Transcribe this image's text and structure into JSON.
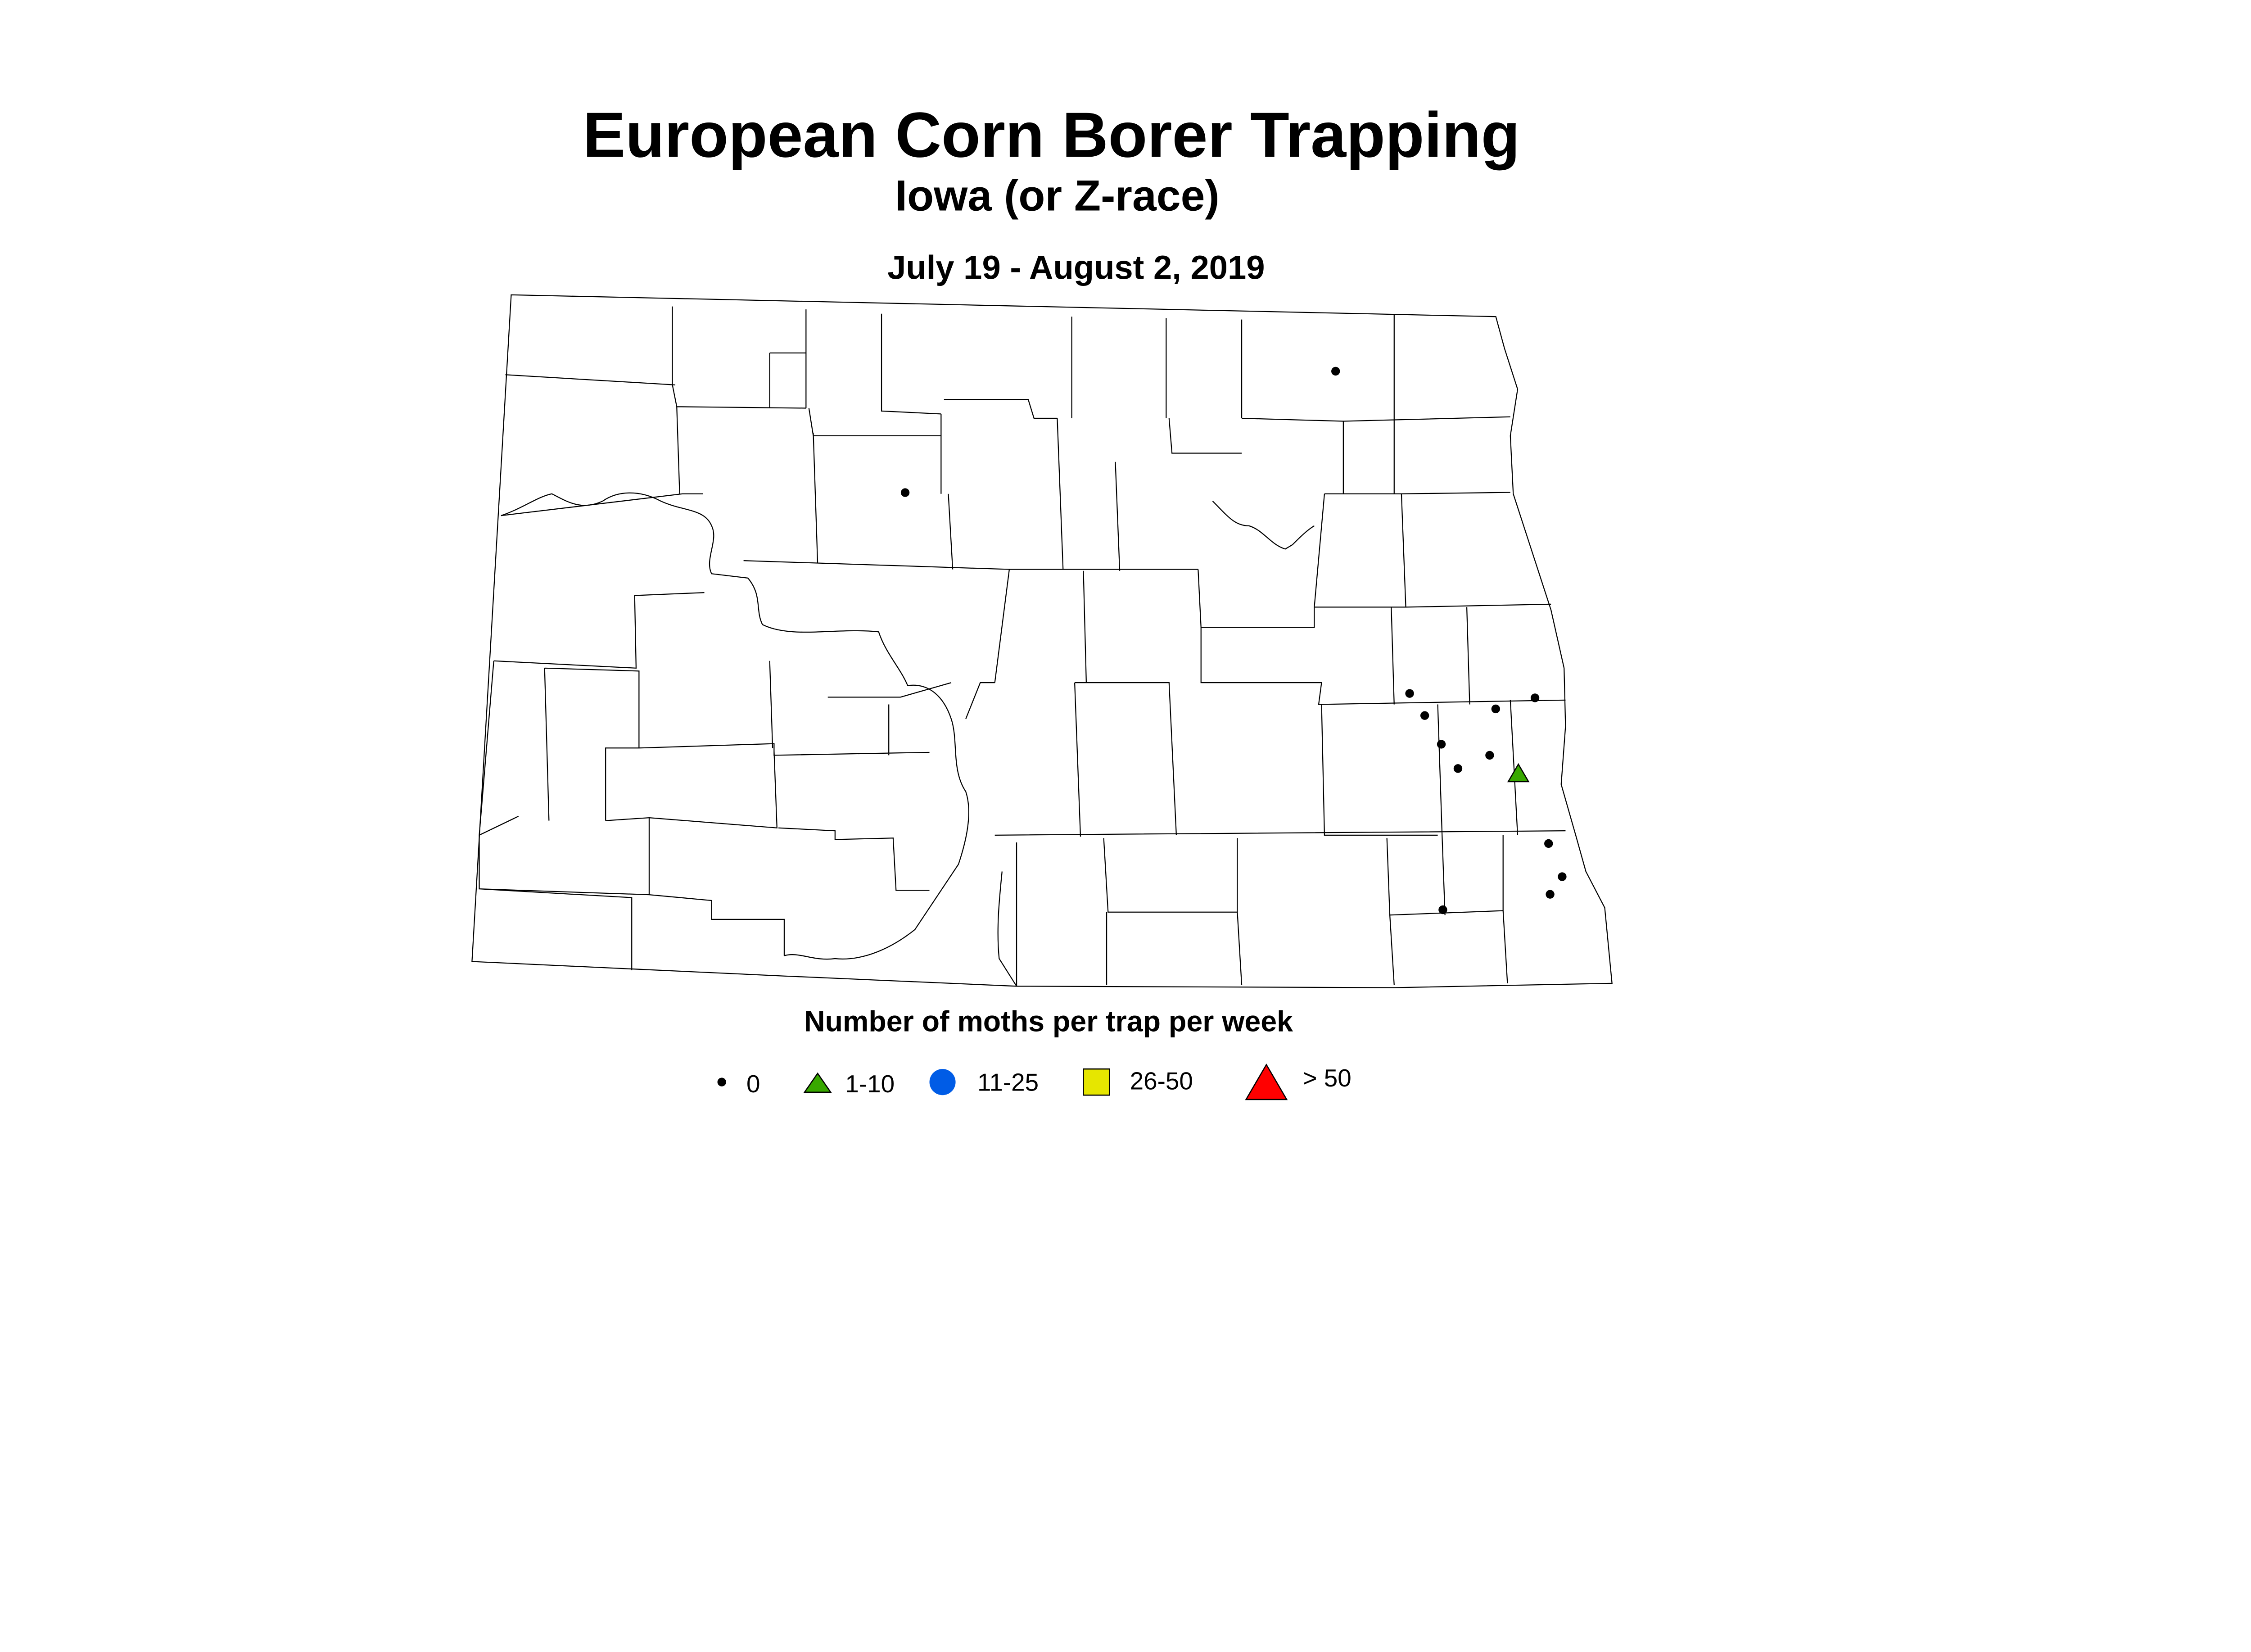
{
  "title": "European Corn Borer Trapping",
  "subtitle": "Iowa (or Z-race)",
  "date_range": "July 19 - August 2, 2019",
  "legend": {
    "title": "Number of moths per trap per week",
    "items": [
      {
        "label": "0",
        "symbol": "dot",
        "color": "#000000"
      },
      {
        "label": "1-10",
        "symbol": "triangle",
        "color": "#38a800"
      },
      {
        "label": "11-25",
        "symbol": "circle",
        "color": "#005ce6"
      },
      {
        "label": "26-50",
        "symbol": "square",
        "color": "#e6e600"
      },
      {
        "label": "> 50",
        "symbol": "triangle-large",
        "color": "#ff0000"
      }
    ]
  },
  "chart_data": {
    "type": "scatter",
    "region": "North Dakota counties",
    "points": [
      {
        "lon": -98.38,
        "lat": 48.7,
        "category": "0"
      },
      {
        "lon": -101.23,
        "lat": 48.15,
        "category": "0"
      },
      {
        "lon": -97.89,
        "lat": 47.24,
        "category": "0"
      },
      {
        "lon": -97.79,
        "lat": 47.14,
        "category": "0"
      },
      {
        "lon": -97.32,
        "lat": 47.17,
        "category": "0"
      },
      {
        "lon": -97.06,
        "lat": 47.22,
        "category": "0"
      },
      {
        "lon": -97.68,
        "lat": 47.01,
        "category": "0"
      },
      {
        "lon": -97.36,
        "lat": 46.96,
        "category": "0"
      },
      {
        "lon": -97.57,
        "lat": 46.9,
        "category": "0"
      },
      {
        "lon": -97.17,
        "lat": 46.88,
        "category": "1-10"
      },
      {
        "lon": -96.97,
        "lat": 46.56,
        "category": "0"
      },
      {
        "lon": -96.88,
        "lat": 46.41,
        "category": "0"
      },
      {
        "lon": -96.96,
        "lat": 46.33,
        "category": "0"
      },
      {
        "lon": -97.67,
        "lat": 46.26,
        "category": "0"
      }
    ]
  }
}
